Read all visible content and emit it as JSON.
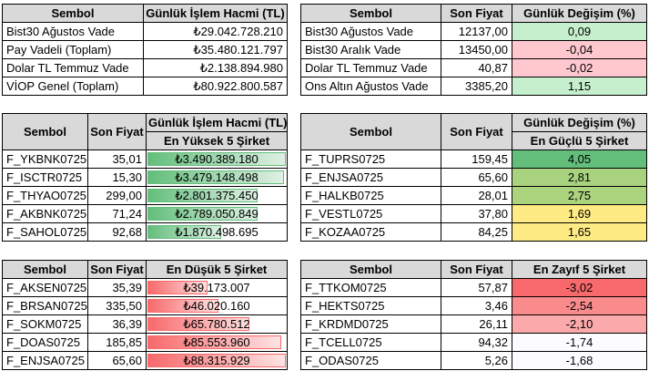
{
  "top_left": {
    "headers": [
      "Sembol",
      "Günlük İşlem Hacmi (TL)"
    ],
    "rows": [
      {
        "sym": "Bist30 Ağustos Vade",
        "val": "₺29.042.728.210"
      },
      {
        "sym": "Pay Vadeli (Toplam)",
        "val": "₺35.480.121.797"
      },
      {
        "sym": "Dolar TL Temmuz Vade",
        "val": "₺2.138.894.980"
      },
      {
        "sym": "VİOP Genel (Toplam)",
        "val": "₺80.922.800.587"
      }
    ]
  },
  "top_right": {
    "headers": [
      "Sembol",
      "Son Fiyat",
      "Günlük Değişim (%)"
    ],
    "rows": [
      {
        "sym": "Bist30 Ağustos Vade",
        "price": "12137,00",
        "chg": "0,09",
        "color": "#c6efce"
      },
      {
        "sym": "Bist30 Aralık Vade",
        "price": "13450,00",
        "chg": "-0,04",
        "color": "#ffc7ce"
      },
      {
        "sym": "Dolar TL Temmuz Vade",
        "price": "40,87",
        "chg": "-0,02",
        "color": "#ffc7ce"
      },
      {
        "sym": "Ons Altın Ağustos Vade",
        "price": "3385,20",
        "chg": "1,15",
        "color": "#c6efce"
      }
    ]
  },
  "volume_top": {
    "headers": [
      "Sembol",
      "Son Fiyat",
      "Günlük İşlem Hacmi (TL)"
    ],
    "subheader": "En Yüksek 5 Şirket",
    "rows": [
      {
        "sym": "F_YKBNK0725",
        "price": "35,01",
        "vol": "₺3.490.389.180",
        "fill": 1.0
      },
      {
        "sym": "F_ISCTR0725",
        "price": "15,30",
        "vol": "₺3.479.148.498",
        "fill": 0.99
      },
      {
        "sym": "F_THYAO0725",
        "price": "299,00",
        "vol": "₺2.801.375.450",
        "fill": 0.8
      },
      {
        "sym": "F_AKBNK0725",
        "price": "71,24",
        "vol": "₺2.789.050.849",
        "fill": 0.8
      },
      {
        "sym": "F_SAHOL0725",
        "price": "92,68",
        "vol": "₺1.870.498.695",
        "fill": 0.54
      }
    ]
  },
  "change_top": {
    "headers": [
      "Sembol",
      "Son Fiyat",
      "Günlük Değişim (%)"
    ],
    "subheader": "En Güçlü 5 Şirket",
    "rows": [
      {
        "sym": "F_TUPRS0725",
        "price": "159,45",
        "chg": "4,05",
        "color": "#63be7b"
      },
      {
        "sym": "F_ENJSA0725",
        "price": "65,60",
        "chg": "2,81",
        "color": "#a9d27f"
      },
      {
        "sym": "F_HALKB0725",
        "price": "28,01",
        "chg": "2,75",
        "color": "#acd47f"
      },
      {
        "sym": "F_VESTL0725",
        "price": "37,80",
        "chg": "1,69",
        "color": "#ffeb84"
      },
      {
        "sym": "F_KOZAA0725",
        "price": "84,25",
        "chg": "1,65",
        "color": "#ffeb84"
      }
    ]
  },
  "volume_bottom": {
    "headers": [
      "Sembol",
      "Son Fiyat",
      "En Düşük 5 Şirket"
    ],
    "rows": [
      {
        "sym": "F_AKSEN0725",
        "price": "35,39",
        "vol": "₺39.173.007",
        "fill": 0.44
      },
      {
        "sym": "F_BRSAN0725",
        "price": "335,50",
        "vol": "₺46.020.160",
        "fill": 0.52
      },
      {
        "sym": "F_SOKM0725",
        "price": "36,39",
        "vol": "₺65.780.512",
        "fill": 0.74
      },
      {
        "sym": "F_DOAS0725",
        "price": "185,85",
        "vol": "₺85.553.960",
        "fill": 0.97
      },
      {
        "sym": "F_ENJSA0725",
        "price": "65,60",
        "vol": "₺88.315.929",
        "fill": 1.0
      }
    ]
  },
  "change_bottom": {
    "headers": [
      "Sembol",
      "Son Fiyat",
      "En Zayıf 5 Şirket"
    ],
    "rows": [
      {
        "sym": "F_TTKOM0725",
        "price": "57,87",
        "chg": "-3,02",
        "color": "#f8696b"
      },
      {
        "sym": "F_HEKTS0725",
        "price": "3,46",
        "chg": "-2,54",
        "color": "#f98b8d"
      },
      {
        "sym": "F_KRDMD0725",
        "price": "26,11",
        "chg": "-2,10",
        "color": "#fba9aa"
      },
      {
        "sym": "F_TCELL0725",
        "price": "94,32",
        "chg": "-1,74",
        "color": "#fcfcff"
      },
      {
        "sym": "F_ODAS0725",
        "price": "5,26",
        "chg": "-1,68",
        "color": "#fcfcff"
      }
    ]
  }
}
